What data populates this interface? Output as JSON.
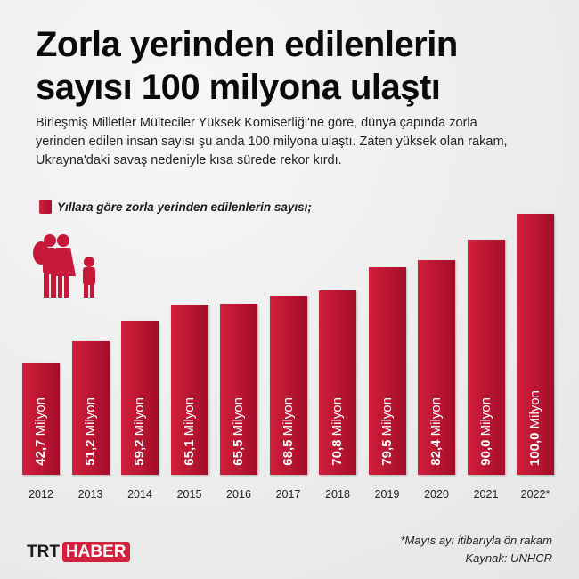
{
  "header": {
    "title_line1": "Zorla yerinden edilenlerin",
    "title_line2": "sayısı 100 milyona ulaştı",
    "description": "Birleşmiş Milletler Mülteciler Yüksek Komiserliği'ne göre, dünya çapında zorla yerinden edilen insan sayısı şu anda 100 milyona ulaştı. Zaten yüksek olan rakam, Ukrayna'daki savaş nedeniyle kısa sürede rekor kırdı."
  },
  "chart_data": {
    "type": "bar",
    "title": "Yıllara göre zorla yerinden edilenlerin sayısı;",
    "categories": [
      "2012",
      "2013",
      "2014",
      "2015",
      "2016",
      "2017",
      "2018",
      "2019",
      "2020",
      "2021",
      "2022*"
    ],
    "values": [
      42.7,
      51.2,
      59.2,
      65.1,
      65.5,
      68.5,
      70.8,
      79.5,
      82.4,
      90.0,
      100.0
    ],
    "data_labels": [
      "42,7",
      "51,2",
      "59,2",
      "65,1",
      "65,5",
      "68,5",
      "70,8",
      "79,5",
      "82,4",
      "90,0",
      "100,0"
    ],
    "unit": "Milyon",
    "ylim": [
      0,
      100
    ],
    "grid": false,
    "bar_color": "#c8183a"
  },
  "footer": {
    "note": "*Mayıs ayı itibarıyla ön rakam",
    "source": "Kaynak: UNHCR",
    "logo_trt": "TRT",
    "logo_haber": "HABER"
  },
  "icons": {
    "family": "refugee-family-icon"
  }
}
